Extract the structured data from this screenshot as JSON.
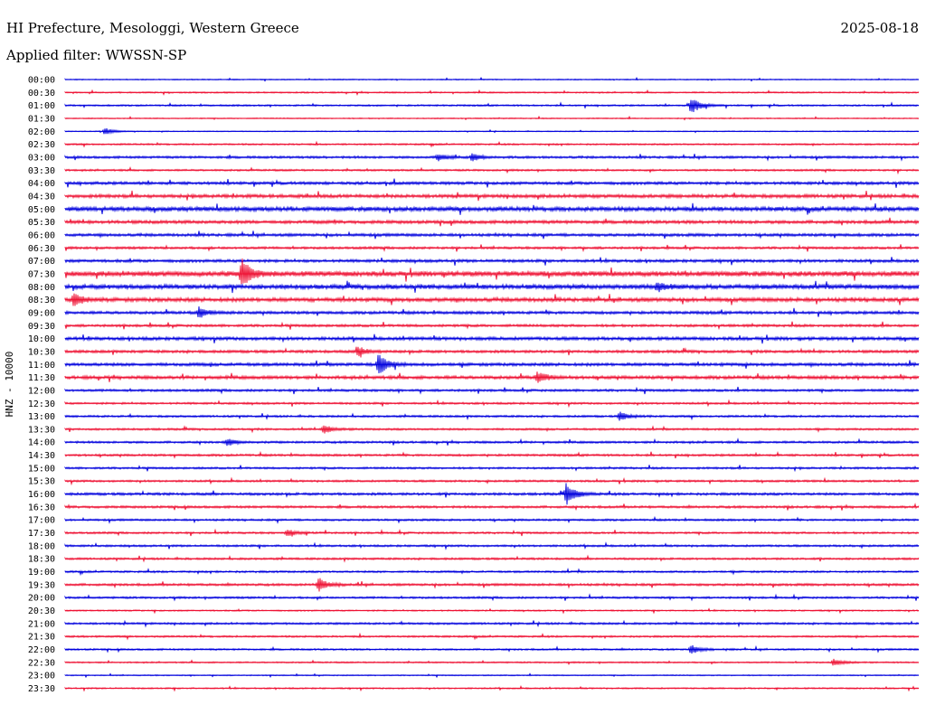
{
  "header": {
    "station": "HI Prefecture, Mesologgi, Western Greece",
    "date": "2025-08-18",
    "filter": "Applied filter: WWSSN-SP"
  },
  "channel_label": "HNZ - 10000",
  "chart_data": {
    "type": "line",
    "description_of_axes": "",
    "row_labels": [
      "00:00",
      "00:30",
      "01:00",
      "01:30",
      "02:00",
      "02:30",
      "03:00",
      "03:30",
      "04:00",
      "04:30",
      "05:00",
      "05:30",
      "06:00",
      "06:30",
      "07:00",
      "07:30",
      "08:00",
      "08:30",
      "09:00",
      "09:30",
      "10:00",
      "10:30",
      "11:00",
      "11:30",
      "12:00",
      "12:30",
      "13:00",
      "13:30",
      "14:00",
      "14:30",
      "15:00",
      "15:30",
      "16:00",
      "16:30",
      "17:00",
      "17:30",
      "18:00",
      "18:30",
      "19:00",
      "19:30",
      "20:00",
      "20:30",
      "21:00",
      "21:30",
      "22:00",
      "22:30",
      "23:00",
      "23:30"
    ],
    "row_colors": [
      "#0000dd",
      "#ee1133"
    ],
    "row_minutes": 30,
    "noise_levels": [
      0.6,
      0.8,
      0.9,
      0.6,
      0.5,
      0.9,
      1.3,
      1.0,
      1.6,
      1.9,
      2.4,
      1.8,
      1.6,
      1.3,
      1.6,
      2.8,
      2.5,
      2.2,
      1.6,
      1.4,
      1.8,
      1.5,
      1.7,
      1.8,
      1.3,
      1.1,
      1.1,
      1.1,
      1.2,
      1.2,
      1.1,
      1.1,
      1.4,
      1.3,
      1.1,
      1.1,
      1.1,
      1.1,
      1.1,
      1.3,
      1.1,
      0.8,
      1.1,
      1.0,
      1.0,
      0.8,
      0.6,
      0.8
    ],
    "events": [
      {
        "row": 2,
        "minute": 22.0,
        "amplitude": 10
      },
      {
        "row": 4,
        "minute": 1.4,
        "amplitude": 4
      },
      {
        "row": 6,
        "minute": 13.1,
        "amplitude": 4
      },
      {
        "row": 6,
        "minute": 14.3,
        "amplitude": 4
      },
      {
        "row": 15,
        "minute": 6.2,
        "amplitude": 16
      },
      {
        "row": 16,
        "minute": 20.8,
        "amplitude": 5
      },
      {
        "row": 17,
        "minute": 0.3,
        "amplitude": 7
      },
      {
        "row": 18,
        "minute": 4.7,
        "amplitude": 6
      },
      {
        "row": 21,
        "minute": 10.3,
        "amplitude": 5
      },
      {
        "row": 22,
        "minute": 11.0,
        "amplitude": 12
      },
      {
        "row": 23,
        "minute": 16.6,
        "amplitude": 6
      },
      {
        "row": 26,
        "minute": 19.5,
        "amplitude": 5
      },
      {
        "row": 27,
        "minute": 9.1,
        "amplitude": 5
      },
      {
        "row": 28,
        "minute": 5.7,
        "amplitude": 4
      },
      {
        "row": 32,
        "minute": 17.6,
        "amplitude": 12
      },
      {
        "row": 35,
        "minute": 7.8,
        "amplitude": 4
      },
      {
        "row": 39,
        "minute": 8.9,
        "amplitude": 8
      },
      {
        "row": 44,
        "minute": 22.0,
        "amplitude": 5
      },
      {
        "row": 45,
        "minute": 27.0,
        "amplitude": 4
      }
    ]
  }
}
